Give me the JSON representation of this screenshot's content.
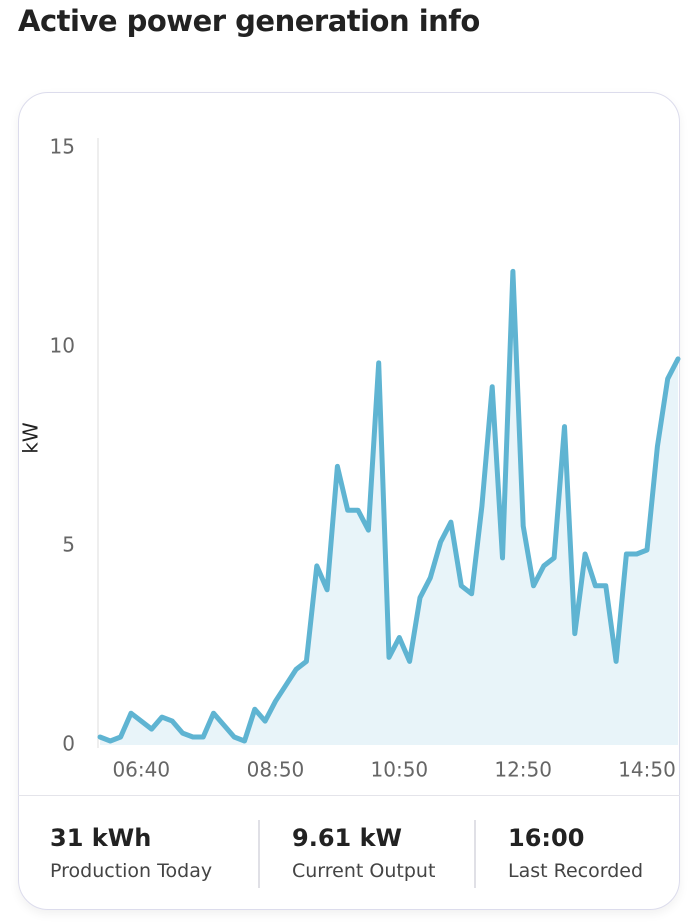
{
  "title": "Active power generation info",
  "chart_data": {
    "type": "line",
    "y_label": "kW",
    "categories": [
      null,
      null,
      null,
      null,
      "06:40",
      null,
      null,
      null,
      null,
      null,
      null,
      null,
      null,
      null,
      null,
      null,
      null,
      "08:50",
      null,
      null,
      null,
      null,
      null,
      null,
      null,
      null,
      null,
      null,
      null,
      "10:50",
      null,
      null,
      null,
      null,
      null,
      null,
      null,
      null,
      null,
      null,
      null,
      "12:50",
      null,
      null,
      null,
      null,
      null,
      null,
      null,
      null,
      null,
      null,
      null,
      "14:50",
      null,
      null,
      null
    ],
    "values": [
      0.2,
      0.1,
      0.2,
      0.8,
      0.6,
      0.4,
      0.7,
      0.6,
      0.3,
      0.2,
      0.2,
      0.8,
      0.5,
      0.2,
      0.1,
      0.9,
      0.6,
      1.1,
      1.5,
      1.9,
      2.1,
      4.5,
      3.9,
      7.0,
      5.9,
      5.9,
      5.4,
      9.6,
      2.2,
      2.7,
      2.1,
      3.7,
      4.2,
      5.1,
      5.6,
      4.0,
      3.8,
      6.0,
      9.0,
      4.7,
      11.9,
      5.5,
      4.0,
      4.5,
      4.7,
      8.0,
      2.8,
      4.8,
      4.0,
      4.0,
      2.1,
      4.8,
      4.8,
      4.9,
      7.5,
      9.2,
      9.7
    ],
    "color": "#5fb4d2",
    "ylim": [
      0,
      15
    ],
    "yticks": [
      0,
      5,
      10,
      15
    ],
    "grid": false
  },
  "stats": [
    {
      "value": "31 kWh",
      "label": "Production Today"
    },
    {
      "value": "9.61 kW",
      "label": "Current Output"
    },
    {
      "value": "16:00",
      "label": "Last Recorded"
    }
  ]
}
